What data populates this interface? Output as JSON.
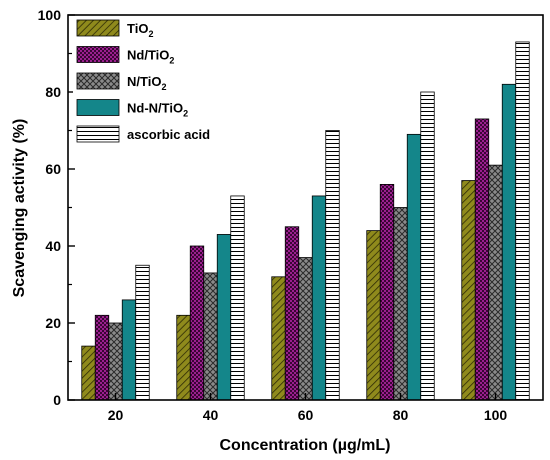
{
  "chart_data": {
    "type": "bar",
    "xlabel": "Concentration (µg/mL)",
    "ylabel": "Scavenging activity (%)",
    "ylim": [
      0,
      100
    ],
    "yticks": [
      0,
      20,
      40,
      60,
      80,
      100
    ],
    "categories": [
      "20",
      "40",
      "60",
      "80",
      "100"
    ],
    "legend_position": "top-left",
    "grid": false,
    "series": [
      {
        "name": "TiO2",
        "label_main": "TiO",
        "label_sub": "2",
        "label_tail": "",
        "pattern": "diag",
        "color": "#8f8a1c",
        "values": [
          14,
          22,
          32,
          44,
          57
        ]
      },
      {
        "name": "Nd/TiO2",
        "label_main": "Nd/TiO",
        "label_sub": "2",
        "label_tail": "",
        "pattern": "checker",
        "color": "#9b1f8f",
        "values": [
          22,
          40,
          45,
          56,
          73
        ]
      },
      {
        "name": "N/TiO2",
        "label_main": "N/TiO",
        "label_sub": "2",
        "label_tail": "",
        "pattern": "cross",
        "color": "#7d7d7d",
        "values": [
          20,
          33,
          37,
          50,
          61
        ]
      },
      {
        "name": "Nd-N/TiO2",
        "label_main": "Nd-N/TiO",
        "label_sub": "2",
        "label_tail": "",
        "pattern": "solid",
        "color": "#14868a",
        "values": [
          26,
          43,
          53,
          69,
          82
        ]
      },
      {
        "name": "ascorbic acid",
        "label_main": "ascorbic acid",
        "label_sub": "",
        "label_tail": "",
        "pattern": "hlines",
        "color": "#ffffff",
        "values": [
          35,
          53,
          70,
          80,
          93
        ]
      }
    ]
  }
}
